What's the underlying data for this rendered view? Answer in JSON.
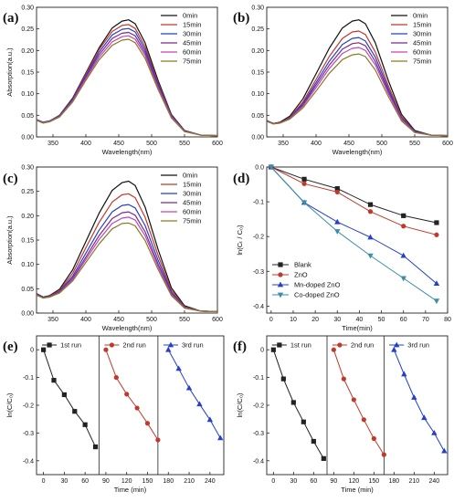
{
  "colors": {
    "t0": "#111111",
    "t15": "#c0392b",
    "t30": "#2540c8",
    "t45": "#7a2a8a",
    "t60": "#c044c0",
    "t75": "#8a7a22",
    "blank": "#222222",
    "zno": "#c0392b",
    "mn": "#2540c8",
    "co": "#3a8fa0"
  },
  "chart_data": [
    {
      "type": "line",
      "panel_label": "(a)",
      "xlabel": "Wavelength(nm)",
      "ylabel": "Absorption(a.u.)",
      "xlim": [
        325,
        600
      ],
      "ylim": [
        0,
        0.3
      ],
      "xticks": [
        350,
        400,
        450,
        500,
        550,
        600
      ],
      "yticks": [
        0.0,
        0.05,
        0.1,
        0.15,
        0.2,
        0.25,
        0.3
      ],
      "legend_position": "top-right",
      "x": [
        325,
        335,
        345,
        360,
        380,
        400,
        420,
        440,
        455,
        465,
        475,
        490,
        510,
        530,
        550,
        575,
        600
      ],
      "series": [
        {
          "name": "0min",
          "color_key": "t0",
          "values": [
            0.04,
            0.034,
            0.037,
            0.05,
            0.09,
            0.148,
            0.206,
            0.252,
            0.268,
            0.271,
            0.262,
            0.218,
            0.13,
            0.052,
            0.015,
            0.004,
            0.003
          ]
        },
        {
          "name": "15min",
          "color_key": "t15",
          "values": [
            0.04,
            0.034,
            0.037,
            0.049,
            0.088,
            0.146,
            0.202,
            0.244,
            0.258,
            0.26,
            0.251,
            0.209,
            0.125,
            0.05,
            0.014,
            0.004,
            0.003
          ]
        },
        {
          "name": "30min",
          "color_key": "t30",
          "values": [
            0.04,
            0.034,
            0.037,
            0.049,
            0.087,
            0.142,
            0.196,
            0.236,
            0.249,
            0.251,
            0.243,
            0.202,
            0.121,
            0.049,
            0.014,
            0.004,
            0.003
          ]
        },
        {
          "name": "45min",
          "color_key": "t45",
          "values": [
            0.039,
            0.033,
            0.036,
            0.048,
            0.085,
            0.139,
            0.19,
            0.228,
            0.24,
            0.242,
            0.234,
            0.195,
            0.117,
            0.047,
            0.013,
            0.004,
            0.003
          ]
        },
        {
          "name": "60min",
          "color_key": "t60",
          "values": [
            0.039,
            0.033,
            0.036,
            0.047,
            0.083,
            0.135,
            0.184,
            0.22,
            0.232,
            0.234,
            0.226,
            0.189,
            0.113,
            0.046,
            0.013,
            0.004,
            0.003
          ]
        },
        {
          "name": "75min",
          "color_key": "t75",
          "values": [
            0.038,
            0.032,
            0.035,
            0.046,
            0.081,
            0.131,
            0.178,
            0.212,
            0.224,
            0.226,
            0.218,
            0.182,
            0.109,
            0.044,
            0.012,
            0.004,
            0.003
          ]
        }
      ]
    },
    {
      "type": "line",
      "panel_label": "(b)",
      "xlabel": "Wavelength(nm)",
      "ylabel": "",
      "xlim": [
        325,
        600
      ],
      "ylim": [
        0,
        0.3
      ],
      "xticks": [
        350,
        400,
        450,
        500,
        550,
        600
      ],
      "yticks": [
        0.0,
        0.05,
        0.1,
        0.15,
        0.2,
        0.25,
        0.3
      ],
      "legend_position": "top-right",
      "x": [
        325,
        335,
        345,
        360,
        380,
        400,
        420,
        440,
        455,
        465,
        475,
        490,
        510,
        530,
        550,
        575,
        600
      ],
      "series": [
        {
          "name": "0min",
          "color_key": "t0",
          "values": [
            0.038,
            0.031,
            0.034,
            0.048,
            0.088,
            0.146,
            0.205,
            0.252,
            0.268,
            0.271,
            0.262,
            0.218,
            0.13,
            0.052,
            0.015,
            0.004,
            0.003
          ]
        },
        {
          "name": "15min",
          "color_key": "t15",
          "values": [
            0.037,
            0.031,
            0.033,
            0.045,
            0.081,
            0.133,
            0.186,
            0.228,
            0.243,
            0.245,
            0.237,
            0.197,
            0.118,
            0.047,
            0.013,
            0.004,
            0.003
          ]
        },
        {
          "name": "30min",
          "color_key": "t30",
          "values": [
            0.037,
            0.031,
            0.033,
            0.044,
            0.077,
            0.126,
            0.175,
            0.214,
            0.228,
            0.23,
            0.222,
            0.185,
            0.111,
            0.044,
            0.013,
            0.004,
            0.003
          ]
        },
        {
          "name": "45min",
          "color_key": "t45",
          "values": [
            0.037,
            0.031,
            0.033,
            0.043,
            0.074,
            0.12,
            0.166,
            0.203,
            0.216,
            0.218,
            0.211,
            0.175,
            0.105,
            0.042,
            0.012,
            0.004,
            0.003
          ]
        },
        {
          "name": "60min",
          "color_key": "t60",
          "values": [
            0.036,
            0.03,
            0.032,
            0.042,
            0.071,
            0.114,
            0.158,
            0.193,
            0.205,
            0.207,
            0.2,
            0.167,
            0.1,
            0.04,
            0.011,
            0.004,
            0.003
          ]
        },
        {
          "name": "75min",
          "color_key": "t75",
          "values": [
            0.036,
            0.03,
            0.032,
            0.041,
            0.067,
            0.106,
            0.147,
            0.179,
            0.19,
            0.192,
            0.186,
            0.155,
            0.093,
            0.037,
            0.01,
            0.004,
            0.003
          ]
        }
      ]
    },
    {
      "type": "line",
      "panel_label": "(c)",
      "xlabel": "Wavelength(nm)",
      "ylabel": "Absorption(a.u.)",
      "xlim": [
        325,
        600
      ],
      "ylim": [
        0,
        0.3
      ],
      "xticks": [
        350,
        400,
        450,
        500,
        550,
        600
      ],
      "yticks": [
        0.0,
        0.05,
        0.1,
        0.15,
        0.2,
        0.25,
        0.3
      ],
      "legend_position": "top-right",
      "x": [
        325,
        335,
        345,
        360,
        380,
        400,
        420,
        440,
        455,
        465,
        475,
        490,
        510,
        530,
        550,
        575,
        600
      ],
      "series": [
        {
          "name": "0min",
          "color_key": "t0",
          "values": [
            0.04,
            0.033,
            0.036,
            0.049,
            0.089,
            0.147,
            0.205,
            0.252,
            0.268,
            0.271,
            0.262,
            0.218,
            0.13,
            0.052,
            0.015,
            0.004,
            0.003
          ]
        },
        {
          "name": "15min",
          "color_key": "t15",
          "values": [
            0.039,
            0.032,
            0.035,
            0.046,
            0.082,
            0.134,
            0.186,
            0.228,
            0.243,
            0.245,
            0.237,
            0.197,
            0.118,
            0.047,
            0.013,
            0.004,
            0.003
          ]
        },
        {
          "name": "30min",
          "color_key": "t30",
          "values": [
            0.038,
            0.032,
            0.034,
            0.044,
            0.076,
            0.123,
            0.17,
            0.208,
            0.221,
            0.223,
            0.216,
            0.18,
            0.108,
            0.043,
            0.012,
            0.004,
            0.003
          ]
        },
        {
          "name": "45min",
          "color_key": "t45",
          "values": [
            0.038,
            0.031,
            0.034,
            0.043,
            0.072,
            0.115,
            0.159,
            0.194,
            0.206,
            0.208,
            0.201,
            0.167,
            0.1,
            0.04,
            0.011,
            0.004,
            0.003
          ]
        },
        {
          "name": "60min",
          "color_key": "t60",
          "values": [
            0.037,
            0.031,
            0.033,
            0.042,
            0.069,
            0.11,
            0.151,
            0.184,
            0.195,
            0.197,
            0.191,
            0.159,
            0.095,
            0.038,
            0.011,
            0.004,
            0.003
          ]
        },
        {
          "name": "75min",
          "color_key": "t75",
          "values": [
            0.037,
            0.031,
            0.033,
            0.041,
            0.066,
            0.104,
            0.142,
            0.173,
            0.184,
            0.185,
            0.179,
            0.149,
            0.089,
            0.036,
            0.01,
            0.004,
            0.003
          ]
        }
      ]
    },
    {
      "type": "line",
      "panel_label": "(d)",
      "xlabel": "Time(min)",
      "ylabel": "ln(Cₜ / C₀)",
      "xlim": [
        -2,
        80
      ],
      "ylim": [
        -0.42,
        0.0
      ],
      "xticks": [
        0,
        10,
        20,
        30,
        40,
        50,
        60,
        70,
        80
      ],
      "yticks": [
        0.0,
        -0.1,
        -0.2,
        -0.3,
        -0.4
      ],
      "ytick_labels": [
        "0.0",
        "-0.1",
        "-0.2",
        "-0.3",
        "-0.4"
      ],
      "legend_position": "bottom-left",
      "x": [
        0,
        15,
        30,
        45,
        60,
        75
      ],
      "series": [
        {
          "name": "Blank",
          "color_key": "blank",
          "marker": "square",
          "values": [
            0,
            -0.035,
            -0.062,
            -0.108,
            -0.14,
            -0.16
          ]
        },
        {
          "name": "ZnO",
          "color_key": "zno",
          "marker": "circle",
          "values": [
            0,
            -0.048,
            -0.072,
            -0.128,
            -0.17,
            -0.195
          ]
        },
        {
          "name": "Mn-doped ZnO",
          "color_key": "mn",
          "marker": "triangle",
          "values": [
            0,
            -0.102,
            -0.158,
            -0.202,
            -0.255,
            -0.335
          ]
        },
        {
          "name": "Co-doped ZnO",
          "color_key": "co",
          "marker": "tridown",
          "values": [
            0,
            -0.102,
            -0.185,
            -0.255,
            -0.32,
            -0.385
          ]
        }
      ]
    },
    {
      "type": "line",
      "panel_label": "(e)",
      "xlabel": "Time (min)",
      "ylabel": "ln(C/C₀)",
      "xlim": [
        -10,
        260
      ],
      "ylim": [
        -0.45,
        0.05
      ],
      "xticks": [
        0,
        30,
        60,
        90,
        120,
        150,
        180,
        210,
        240
      ],
      "yticks": [
        0.0,
        -0.1,
        -0.2,
        -0.3,
        -0.4
      ],
      "ytick_labels": [
        "0",
        "-0.1",
        "-0.2",
        "-0.3",
        "-0.4"
      ],
      "dividers": [
        80,
        165
      ],
      "run_labels": [
        "1st run",
        "2nd run",
        "3rd run"
      ],
      "series": [
        {
          "name": "1st run",
          "color_key": "blank",
          "marker": "square",
          "x": [
            0,
            15,
            30,
            45,
            60,
            75
          ],
          "values": [
            0,
            -0.11,
            -0.162,
            -0.222,
            -0.27,
            -0.35
          ]
        },
        {
          "name": "2nd run",
          "color_key": "zno",
          "marker": "circle",
          "x": [
            90,
            105,
            120,
            135,
            150,
            165
          ],
          "values": [
            0,
            -0.1,
            -0.16,
            -0.21,
            -0.265,
            -0.325
          ]
        },
        {
          "name": "3rd run",
          "color_key": "mn",
          "marker": "triangle",
          "x": [
            180,
            195,
            210,
            225,
            240,
            255
          ],
          "values": [
            0,
            -0.068,
            -0.138,
            -0.196,
            -0.252,
            -0.318
          ]
        }
      ]
    },
    {
      "type": "line",
      "panel_label": "(f)",
      "xlabel": "Time (min)",
      "ylabel": "ln(C/C₀)",
      "xlim": [
        -10,
        260
      ],
      "ylim": [
        -0.45,
        0.05
      ],
      "xticks": [
        0,
        30,
        60,
        90,
        120,
        150,
        180,
        210,
        240
      ],
      "yticks": [
        0.0,
        -0.1,
        -0.2,
        -0.3,
        -0.4
      ],
      "ytick_labels": [
        "0",
        "-0.1",
        "-0.2",
        "-0.3",
        "-0.4"
      ],
      "dividers": [
        80,
        165
      ],
      "run_labels": [
        "1st run",
        "2nd run",
        "3rd run"
      ],
      "series": [
        {
          "name": "1st run",
          "color_key": "blank",
          "marker": "square",
          "x": [
            0,
            15,
            30,
            45,
            60,
            75
          ],
          "values": [
            0,
            -0.105,
            -0.19,
            -0.26,
            -0.33,
            -0.392
          ]
        },
        {
          "name": "2nd run",
          "color_key": "zno",
          "marker": "circle",
          "x": [
            90,
            105,
            120,
            135,
            150,
            165
          ],
          "values": [
            0,
            -0.105,
            -0.18,
            -0.252,
            -0.32,
            -0.378
          ]
        },
        {
          "name": "3rd run",
          "color_key": "mn",
          "marker": "triangle",
          "x": [
            180,
            195,
            210,
            225,
            240,
            255
          ],
          "values": [
            0,
            -0.088,
            -0.172,
            -0.245,
            -0.3,
            -0.365
          ]
        }
      ]
    }
  ]
}
